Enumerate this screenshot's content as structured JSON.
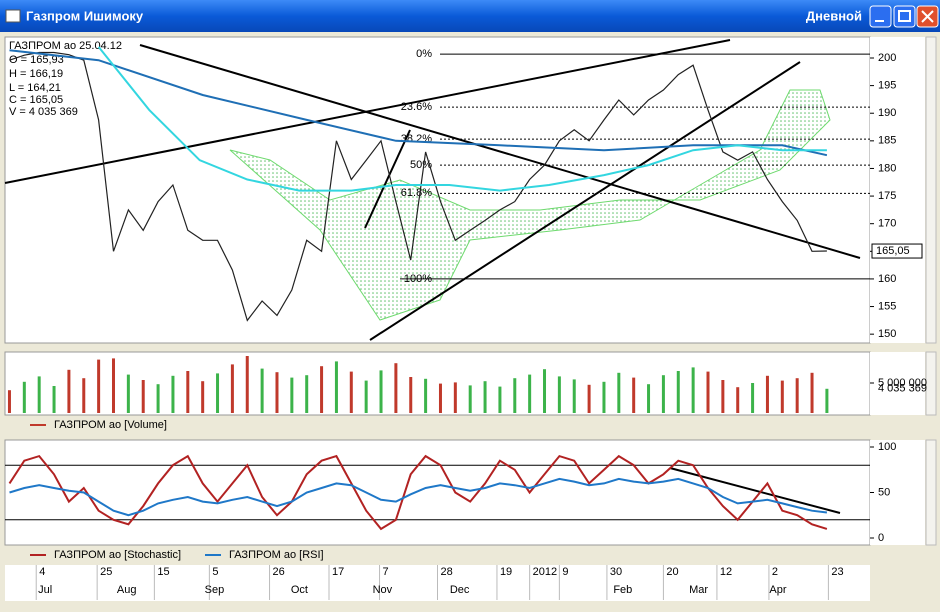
{
  "window": {
    "title": "Газпром Ишимоку",
    "period": "Дневной"
  },
  "info": [
    "ГАЗПРОМ ао 25.04.12",
    "O = 165,93",
    "H = 166,19",
    "L = 164,21",
    "C = 165,05",
    "V = 4 035 369"
  ],
  "chart_data": [
    {
      "type": "line",
      "xlim": [
        -0.3,
        57.9
      ],
      "ylim": [
        148.4,
        203.8
      ],
      "yticks": [
        150,
        155,
        160,
        165,
        170,
        175,
        180,
        185,
        190,
        195,
        200
      ],
      "fib_levels": [
        {
          "value": 200.7,
          "label": "0%"
        },
        {
          "value": 191.1,
          "label": "23.6%"
        },
        {
          "value": 185.3,
          "label": "38.2%"
        },
        {
          "value": 180.6,
          "label": "50%"
        },
        {
          "value": 175.5,
          "label": "61.8%"
        },
        {
          "value": 160,
          "label": "100%"
        }
      ],
      "series": [
        {
          "color": "#222222",
          "values": [
            199.6,
            200.5,
            201,
            201,
            200.6,
            199.6,
            188.8,
            165,
            172.5,
            168.8,
            174,
            177,
            168.8,
            167,
            167,
            161.6,
            152.5,
            156,
            153.4,
            158,
            167,
            165,
            185,
            178,
            181.5,
            185,
            174,
            163.4,
            183,
            174,
            167,
            168.8,
            170.6,
            172.5,
            174,
            178,
            180.6,
            185,
            187,
            185,
            188.8,
            192.4,
            189.7,
            192.4,
            194.2,
            197,
            198.7,
            190.6,
            183,
            181.5,
            183,
            178,
            174,
            170.6,
            165,
            165.05
          ],
          "value_labels": [
            null,
            null,
            null,
            null,
            null,
            null,
            null,
            null,
            null,
            null,
            null,
            null,
            null,
            null,
            null,
            null,
            null,
            null,
            null,
            null,
            null,
            null,
            null,
            null,
            null,
            null,
            null,
            null,
            null,
            null,
            null,
            null,
            null,
            null,
            null,
            null,
            null,
            null,
            null,
            null,
            null,
            null,
            null,
            null,
            null,
            null,
            null,
            null,
            null,
            null,
            null,
            null,
            null,
            null,
            null,
            "165,05"
          ]
        },
        {
          "color": "#1f6fb5",
          "x": [
            0,
            6,
            13,
            20,
            26,
            33,
            40,
            46,
            52,
            55
          ],
          "values": [
            201.4,
            199.6,
            193.3,
            188.8,
            185,
            184.2,
            183.3,
            184.2,
            184.2,
            182.4
          ]
        },
        {
          "color": "#33d6e0",
          "x": [
            6,
            9.4,
            12.8,
            16,
            19.5,
            23,
            26,
            29.6,
            33,
            36.3,
            40,
            43,
            46,
            49,
            52,
            55
          ],
          "values": [
            202,
            190.6,
            181.5,
            178,
            176,
            176,
            177,
            177,
            176,
            177,
            178.8,
            180.6,
            183.3,
            184.2,
            183.3,
            183.3
          ]
        }
      ]
    },
    {
      "type": "bar",
      "xlim": [
        -0.3,
        57.9
      ],
      "ylim": [
        0,
        10000000
      ],
      "yticks": [
        {
          "value": 5000000,
          "label": "5 000 000"
        }
      ],
      "series": [
        {
          "name": "ГАЗПРОМ ао [Volume]",
          "color": "#c0392b",
          "up_color": "#3cb34a",
          "values": [
            3800000,
            5200000,
            6100000,
            4500000,
            7200000,
            5800000,
            8900000,
            9100000,
            6400000,
            5500000,
            4800000,
            6200000,
            7000000,
            5300000,
            6600000,
            8100000,
            9500000,
            7400000,
            6800000,
            5900000,
            6300000,
            7800000,
            8600000,
            6900000,
            5400000,
            7100000,
            8300000,
            6000000,
            5700000,
            4900000,
            5100000,
            4600000,
            5300000,
            4400000,
            5800000,
            6400000,
            7300000,
            6100000,
            5600000,
            4700000,
            5200000,
            6700000,
            5900000,
            4800000,
            6300000,
            7000000,
            7600000,
            6900000,
            5500000,
            4300000,
            5000000,
            6200000,
            5400000,
            5800000,
            6700000,
            4035369
          ],
          "value_labels": [
            null,
            null,
            null,
            null,
            null,
            null,
            null,
            null,
            null,
            null,
            null,
            null,
            null,
            null,
            null,
            null,
            null,
            null,
            null,
            null,
            null,
            null,
            null,
            null,
            null,
            null,
            null,
            null,
            null,
            null,
            null,
            null,
            null,
            null,
            null,
            null,
            null,
            null,
            null,
            null,
            null,
            null,
            null,
            null,
            null,
            null,
            null,
            null,
            null,
            null,
            null,
            null,
            null,
            null,
            null,
            "4 035 369"
          ]
        }
      ]
    },
    {
      "type": "line",
      "xlim": [
        -0.3,
        57.9
      ],
      "ylim": [
        -7.7,
        107.7
      ],
      "yticks": [
        0,
        50,
        100
      ],
      "levels": [
        20,
        80
      ],
      "xticks": [
        {
          "value": 1.8,
          "label": "4"
        },
        {
          "value": 5.9,
          "label": "25"
        },
        {
          "value": 9.75,
          "label": "15"
        },
        {
          "value": 13.45,
          "label": "5"
        },
        {
          "value": 17.5,
          "label": "26"
        },
        {
          "value": 21.5,
          "label": "17"
        },
        {
          "value": 24.9,
          "label": "7"
        },
        {
          "value": 28.8,
          "label": "28"
        },
        {
          "value": 32.8,
          "label": "19"
        },
        {
          "value": 35,
          "label": "2012"
        },
        {
          "value": 37,
          "label": "9"
        },
        {
          "value": 40.2,
          "label": "30"
        },
        {
          "value": 44,
          "label": "20"
        },
        {
          "value": 47.6,
          "label": "12"
        },
        {
          "value": 51.1,
          "label": "2"
        },
        {
          "value": 55.1,
          "label": "23"
        }
      ],
      "month_ticks": [
        {
          "value": 2.2,
          "label": "Jul"
        },
        {
          "value": 7.5,
          "label": "Aug"
        },
        {
          "value": 13.4,
          "label": "Sep"
        },
        {
          "value": 19.2,
          "label": "Oct"
        },
        {
          "value": 24.7,
          "label": "Nov"
        },
        {
          "value": 29.9,
          "label": "Dec"
        },
        {
          "value": 40.9,
          "label": "Feb"
        },
        {
          "value": 46,
          "label": "Mar"
        },
        {
          "value": 51.4,
          "label": "Apr"
        }
      ],
      "series": [
        {
          "name": "ГАЗПРОМ ао [Stochastic]",
          "color": "#b22222",
          "values": [
            60,
            85,
            90,
            70,
            40,
            55,
            30,
            20,
            15,
            35,
            60,
            80,
            90,
            60,
            40,
            60,
            80,
            45,
            25,
            40,
            70,
            85,
            90,
            60,
            30,
            10,
            20,
            70,
            90,
            80,
            50,
            40,
            60,
            85,
            75,
            50,
            70,
            90,
            85,
            60,
            75,
            90,
            80,
            60,
            70,
            85,
            80,
            55,
            35,
            20,
            40,
            60,
            30,
            25,
            15,
            10
          ]
        },
        {
          "name": "ГАЗПРОМ ао [RSI]",
          "color": "#1f78c8",
          "values": [
            50,
            55,
            58,
            55,
            52,
            50,
            40,
            30,
            25,
            30,
            38,
            42,
            45,
            40,
            38,
            42,
            45,
            40,
            35,
            40,
            50,
            55,
            60,
            58,
            50,
            42,
            40,
            48,
            55,
            58,
            55,
            52,
            55,
            60,
            58,
            55,
            60,
            65,
            62,
            58,
            60,
            65,
            62,
            60,
            62,
            65,
            60,
            55,
            45,
            38,
            40,
            42,
            38,
            34,
            30,
            28
          ]
        }
      ]
    }
  ]
}
